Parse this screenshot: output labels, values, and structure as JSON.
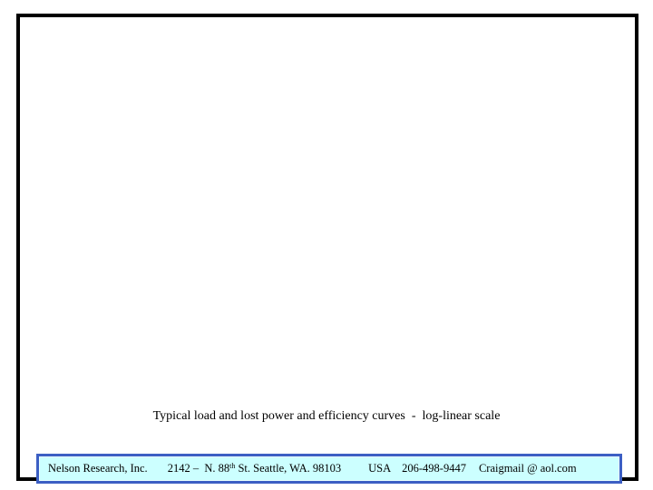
{
  "slide": {
    "caption": "Typical load and lost power and efficiency curves  -  log-linear scale",
    "footer": {
      "company": "Nelson Research, Inc.",
      "address_pre": "2142 –  N. 88",
      "address_sup": "th",
      "address_post": " St. Seattle, WA. 98103",
      "country": "USA",
      "phone": "206-498-9447",
      "email": "Craigmail @ aol.com"
    },
    "colors": {
      "slide_border": "#000000",
      "footer_border": "#3c5fc4",
      "footer_fill": "#ccffff",
      "page_bg": "#ffffff",
      "text": "#000000"
    }
  }
}
